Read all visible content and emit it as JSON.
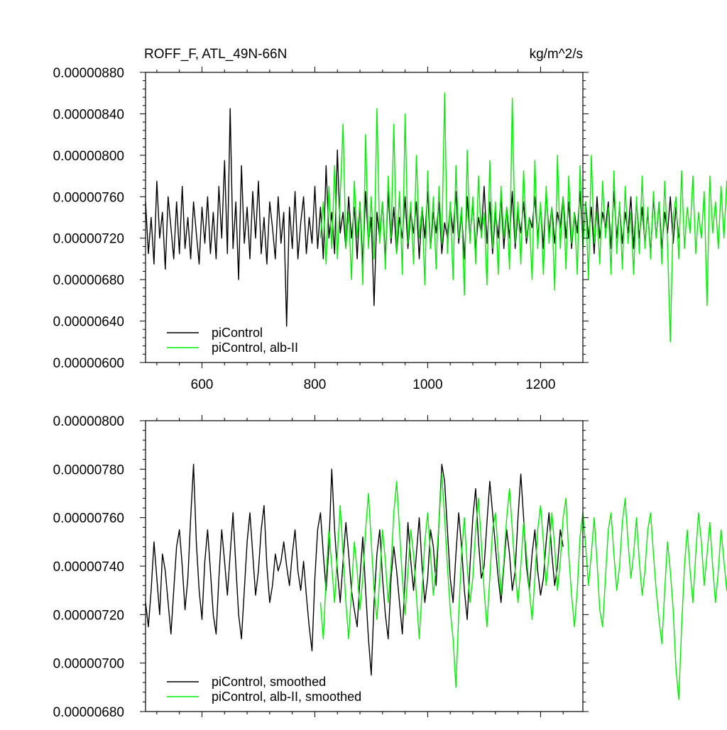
{
  "chart_data": [
    {
      "type": "line",
      "title_left": "ROFF_F, ATL_49N-66N",
      "title_right": "kg/m^2/s",
      "xlim": [
        500,
        1275
      ],
      "ylim": [
        6e-06,
        8.8e-06
      ],
      "xticks": [
        600,
        800,
        1000,
        1200
      ],
      "xtick_labels": [
        "600",
        "800",
        "1000",
        "1200"
      ],
      "yticks": [
        6e-06,
        6.4e-06,
        6.8e-06,
        7.2e-06,
        7.6e-06,
        8e-06,
        8.4e-06,
        8.8e-06
      ],
      "ytick_labels": [
        "0.00000600",
        "0.00000640",
        "0.00000680",
        "0.00000720",
        "0.00000760",
        "0.00000800",
        "0.00000840",
        "0.00000880"
      ],
      "legend_position": "bottom-left",
      "series": [
        {
          "name": "piControl",
          "color": "#000000",
          "x_start": 500,
          "x_step": 5,
          "values": [
            7.55e-06,
            7.05e-06,
            7.4e-06,
            6.95e-06,
            7.75e-06,
            7.2e-06,
            7.45e-06,
            6.9e-06,
            7.6e-06,
            7.3e-06,
            7e-06,
            7.55e-06,
            7.05e-06,
            7.7e-06,
            7.1e-06,
            7.4e-06,
            7e-06,
            7.55e-06,
            7.25e-06,
            6.95e-06,
            7.5e-06,
            7.15e-06,
            7.6e-06,
            7.05e-06,
            7.45e-06,
            7e-06,
            7.7e-06,
            7.2e-06,
            7.95e-06,
            7.05e-06,
            8.45e-06,
            7.1e-06,
            7.55e-06,
            6.8e-06,
            7.9e-06,
            7.15e-06,
            7.5e-06,
            7e-06,
            7.65e-06,
            7.2e-06,
            7.75e-06,
            7.05e-06,
            7.4e-06,
            6.95e-06,
            7.55e-06,
            7.3e-06,
            7e-06,
            7.6e-06,
            7.15e-06,
            7.45e-06,
            6.35e-06,
            7.5e-06,
            7.1e-06,
            7.65e-06,
            7e-06,
            7.35e-06,
            7.6e-06,
            7.05e-06,
            7.4e-06,
            7.15e-06,
            7.7e-06,
            7.1e-06,
            7.5e-06,
            7e-06,
            7.9e-06,
            7.2e-06,
            7.45e-06,
            7.05e-06,
            8.05e-06,
            7.25e-06,
            7.45e-06,
            7.1e-06,
            7.6e-06,
            7.2e-06,
            7.5e-06,
            7e-06,
            7.55e-06,
            6.95e-06,
            7.65e-06,
            7.15e-06,
            7.4e-06,
            6.55e-06,
            7.45e-06,
            7.2e-06,
            7.55e-06,
            7e-06,
            7.65e-06,
            7.15e-06,
            7.5e-06,
            7.05e-06,
            7.4e-06,
            7.2e-06,
            7.6e-06,
            7.1e-06,
            7.45e-06,
            7.25e-06,
            7.55e-06,
            7e-06,
            7.5e-06,
            7.2e-06,
            7.65e-06,
            7.1e-06,
            7.45e-06,
            7.25e-06,
            7.55e-06,
            7.05e-06,
            7.35e-06,
            7.2e-06,
            7.5e-06,
            7.25e-06,
            7.65e-06,
            7.15e-06,
            7.45e-06,
            7e-06,
            7.6e-06,
            7.2e-06,
            7.55e-06,
            7.1e-06,
            7.4e-06,
            7.25e-06,
            7.7e-06,
            7.15e-06,
            7.55e-06,
            7.05e-06,
            7.45e-06,
            7.2e-06,
            7.6e-06,
            7.1e-06,
            7.5e-06,
            7.2e-06,
            7.65e-06,
            7.1e-06,
            7.45e-06,
            7.25e-06,
            7.55e-06,
            7.15e-06,
            7.4e-06,
            7.3e-06,
            7.6e-06,
            7.2e-06,
            7.5e-06,
            7.1e-06,
            7.65e-06,
            7.25e-06,
            7.5e-06,
            7.15e-06,
            7.45e-06,
            7.3e-06,
            7.6e-06,
            7.2e-06,
            7.55e-06,
            7.1e-06,
            7.45e-06,
            7.25e-06,
            7.65e-06,
            7.15e-06,
            7.55e-06,
            7.2e-06,
            7.5e-06,
            7.05e-06,
            7.6e-06,
            7.2e-06,
            7.45e-06,
            7.3e-06,
            7.55e-06,
            7.1e-06,
            7.65e-06,
            7.2e-06,
            7.5e-06,
            7.15e-06,
            7.45e-06,
            7.25e-06,
            7.6e-06,
            7.1e-06,
            7.55e-06,
            7.2e-06,
            7.5e-06,
            7.15e-06,
            7.45e-06,
            7.05e-06,
            7.6e-06,
            7.2e-06,
            7.55e-06,
            7.1e-06,
            7.45e-06,
            7.25e-06,
            7.6e-06,
            7.15e-06,
            7.5e-06,
            7.2e-06
          ]
        },
        {
          "name": "piControl, alb-II",
          "color": "#00ee00",
          "x_start": 810,
          "x_step": 5,
          "values": [
            7.2e-06,
            7.55e-06,
            6.95e-06,
            7.7e-06,
            7.1e-06,
            7.9e-06,
            7e-06,
            7.6e-06,
            8.3e-06,
            7.1e-06,
            7.45e-06,
            6.8e-06,
            7.75e-06,
            7.2e-06,
            7.55e-06,
            6.75e-06,
            8.2e-06,
            7.1e-06,
            7.6e-06,
            7e-06,
            8.45e-06,
            7.15e-06,
            7.55e-06,
            6.9e-06,
            7.8e-06,
            7.2e-06,
            8.3e-06,
            7.05e-06,
            7.65e-06,
            6.85e-06,
            8.4e-06,
            7.15e-06,
            7.55e-06,
            6.95e-06,
            8e-06,
            7.2e-06,
            7.5e-06,
            6.75e-06,
            7.85e-06,
            7.1e-06,
            7.6e-06,
            6.9e-06,
            7.7e-06,
            7.15e-06,
            8.6e-06,
            7.05e-06,
            7.55e-06,
            6.8e-06,
            7.9e-06,
            7.2e-06,
            7.5e-06,
            6.65e-06,
            8.05e-06,
            7.15e-06,
            7.6e-06,
            6.95e-06,
            7.8e-06,
            7.2e-06,
            7.45e-06,
            6.75e-06,
            7.95e-06,
            7.1e-06,
            7.55e-06,
            6.85e-06,
            7.7e-06,
            7.2e-06,
            7.5e-06,
            6.9e-06,
            8.55e-06,
            7.15e-06,
            7.55e-06,
            6.95e-06,
            7.85e-06,
            7.2e-06,
            7.4e-06,
            6.8e-06,
            7.95e-06,
            7.1e-06,
            7.55e-06,
            6.85e-06,
            7.7e-06,
            7.15e-06,
            7.5e-06,
            6.7e-06,
            8e-06,
            7.1e-06,
            7.6e-06,
            6.9e-06,
            7.8e-06,
            7.15e-06,
            7.45e-06,
            6.85e-06,
            7.9e-06,
            7.1e-06,
            7.55e-06,
            6.8e-06,
            8e-06,
            7.15e-06,
            7.45e-06,
            6.95e-06,
            7.75e-06,
            7.2e-06,
            7.5e-06,
            6.85e-06,
            7.85e-06,
            7.05e-06,
            7.55e-06,
            6.9e-06,
            7.7e-06,
            7.15e-06,
            7.45e-06,
            6.85e-06,
            7.6e-06,
            7.05e-06,
            7.8e-06,
            7.1e-06,
            7.5e-06,
            7e-06,
            7.65e-06,
            7.2e-06,
            7.55e-06,
            6.95e-06,
            7.75e-06,
            7.15e-06,
            6.2e-06,
            7.4e-06,
            7.6e-06,
            7e-06,
            7.85e-06,
            7.1e-06,
            7.5e-06,
            7.25e-06,
            7.8e-06,
            7.05e-06,
            7.45e-06,
            7.2e-06,
            7.65e-06,
            6.55e-06,
            7.8e-06,
            7.25e-06,
            7.55e-06,
            7.1e-06,
            7.7e-06,
            7.2e-06,
            7.75e-06,
            7.05e-06
          ]
        }
      ]
    },
    {
      "type": "line",
      "xlim": [
        500,
        1275
      ],
      "ylim": [
        6.8e-06,
        8e-06
      ],
      "xticks": [
        600,
        800,
        1000,
        1200
      ],
      "yticks": [
        6.8e-06,
        7e-06,
        7.2e-06,
        7.4e-06,
        7.6e-06,
        7.8e-06,
        8e-06
      ],
      "ytick_labels": [
        "0.00000680",
        "0.00000700",
        "0.00000720",
        "0.00000740",
        "0.00000760",
        "0.00000780",
        "0.00000800"
      ],
      "legend_position": "bottom-left",
      "series": [
        {
          "name": "piControl, smoothed",
          "color": "#000000",
          "x_start": 500,
          "x_step": 5,
          "values": [
            7.25e-06,
            7.15e-06,
            7.3e-06,
            7.5e-06,
            7.35e-06,
            7.2e-06,
            7.45e-06,
            7.38e-06,
            7.25e-06,
            7.12e-06,
            7.3e-06,
            7.48e-06,
            7.55e-06,
            7.4e-06,
            7.22e-06,
            7.35e-06,
            7.6e-06,
            7.82e-06,
            7.5e-06,
            7.3e-06,
            7.18e-06,
            7.42e-06,
            7.55e-06,
            7.38e-06,
            7.2e-06,
            7.12e-06,
            7.35e-06,
            7.55e-06,
            7.42e-06,
            7.28e-06,
            7.45e-06,
            7.62e-06,
            7.4e-06,
            7.2e-06,
            7.1e-06,
            7.3e-06,
            7.5e-06,
            7.62e-06,
            7.45e-06,
            7.28e-06,
            7.38e-06,
            7.55e-06,
            7.65e-06,
            7.4e-06,
            7.25e-06,
            7.32e-06,
            7.45e-06,
            7.38e-06,
            7.42e-06,
            7.5e-06,
            7.4e-06,
            7.32e-06,
            7.45e-06,
            7.55e-06,
            7.38e-06,
            7.3e-06,
            7.42e-06,
            7.28e-06,
            7.15e-06,
            7.05e-06,
            7.35e-06,
            7.55e-06,
            7.62e-06,
            7.45e-06,
            7.3e-06,
            7.48e-06,
            7.8e-06,
            7.55e-06,
            7.38e-06,
            7.25e-06,
            7.42e-06,
            7.58e-06,
            7.45e-06,
            7.3e-06,
            7.22e-06,
            7.15e-06,
            7.35e-06,
            7.52e-06,
            7.3e-06,
            7.1e-06,
            6.95e-06,
            7.25e-06,
            7.45e-06,
            7.55e-06,
            7.35e-06,
            7.2e-06,
            7.1e-06,
            7.35e-06,
            7.48e-06,
            7.38e-06,
            7.25e-06,
            7.12e-06,
            7.35e-06,
            7.58e-06,
            7.42e-06,
            7.3e-06,
            7.45e-06,
            7.6e-06,
            7.4e-06,
            7.25e-06,
            7.35e-06,
            7.55e-06,
            7.48e-06,
            7.32e-06,
            7.58e-06,
            7.82e-06,
            7.75e-06,
            7.55e-06,
            7.35e-06,
            7.25e-06,
            7.45e-06,
            7.62e-06,
            7.48e-06,
            7.3e-06,
            7.18e-06,
            7.4e-06,
            7.6e-06,
            7.72e-06,
            7.5e-06,
            7.35e-06,
            7.4e-06,
            7.58e-06,
            7.75e-06,
            7.62e-06,
            7.48e-06,
            7.35e-06,
            7.25e-06,
            7.4e-06,
            7.55e-06,
            7.45e-06,
            7.3e-06,
            7.38e-06,
            7.6e-06,
            7.78e-06,
            7.6e-06,
            7.4e-06,
            7.3e-06,
            7.45e-06,
            7.55e-06,
            7.38e-06,
            7.28e-06,
            7.35e-06,
            7.5e-06,
            7.62e-06,
            7.45e-06,
            7.32e-06,
            7.4e-06,
            7.55e-06,
            7.48e-06
          ]
        },
        {
          "name": "piControl, alb-II, smoothed",
          "color": "#00ee00",
          "x_start": 810,
          "x_step": 5,
          "values": [
            7.25e-06,
            7.1e-06,
            7.35e-06,
            7.55e-06,
            7.4e-06,
            7.25e-06,
            7.45e-06,
            7.65e-06,
            7.45e-06,
            7.25e-06,
            7.1e-06,
            7.3e-06,
            7.5e-06,
            7.38e-06,
            7.22e-06,
            7.35e-06,
            7.55e-06,
            7.7e-06,
            7.5e-06,
            7.3e-06,
            7.18e-06,
            7.35e-06,
            7.55e-06,
            7.42e-06,
            7.25e-06,
            7.4e-06,
            7.62e-06,
            7.75e-06,
            7.55e-06,
            7.35e-06,
            7.2e-06,
            7.38e-06,
            7.55e-06,
            7.45e-06,
            7.28e-06,
            7.1e-06,
            7.3e-06,
            7.5e-06,
            7.62e-06,
            7.45e-06,
            7.28e-06,
            7.4e-06,
            7.58e-06,
            7.78e-06,
            7.6e-06,
            7.4e-06,
            7.22e-06,
            7.1e-06,
            6.9e-06,
            7.2e-06,
            7.45e-06,
            7.6e-06,
            7.4e-06,
            7.25e-06,
            7.35e-06,
            7.55e-06,
            7.68e-06,
            7.5e-06,
            7.3e-06,
            7.15e-06,
            7.35e-06,
            7.55e-06,
            7.62e-06,
            7.45e-06,
            7.28e-06,
            7.42e-06,
            7.6e-06,
            7.72e-06,
            7.55e-06,
            7.38e-06,
            7.25e-06,
            7.4e-06,
            7.58e-06,
            7.45e-06,
            7.3e-06,
            7.18e-06,
            7.35e-06,
            7.55e-06,
            7.65e-06,
            7.5e-06,
            7.32e-06,
            7.45e-06,
            7.62e-06,
            7.48e-06,
            7.3e-06,
            7.42e-06,
            7.6e-06,
            7.68e-06,
            7.45e-06,
            7.28e-06,
            7.15e-06,
            7.3e-06,
            7.52e-06,
            7.62e-06,
            7.48e-06,
            7.32e-06,
            7.45e-06,
            7.6e-06,
            7.42e-06,
            7.22e-06,
            7.15e-06,
            7.35e-06,
            7.55e-06,
            7.62e-06,
            7.45e-06,
            7.3e-06,
            7.4e-06,
            7.58e-06,
            7.68e-06,
            7.5e-06,
            7.35e-06,
            7.45e-06,
            7.6e-06,
            7.42e-06,
            7.28e-06,
            7.38e-06,
            7.55e-06,
            7.62e-06,
            7.45e-06,
            7.3e-06,
            7.18e-06,
            7.08e-06,
            7.3e-06,
            7.5e-06,
            7.38e-06,
            7.22e-06,
            6.98e-06,
            6.85e-06,
            7.15e-06,
            7.4e-06,
            7.55e-06,
            7.38e-06,
            7.25e-06,
            7.45e-06,
            7.62e-06,
            7.5e-06,
            7.32e-06,
            7.45e-06,
            7.58e-06,
            7.4e-06,
            7.25e-06,
            7.38e-06,
            7.55e-06,
            7.42e-06,
            7.3e-06,
            7.5e-06,
            7.55e-06
          ]
        }
      ]
    }
  ]
}
